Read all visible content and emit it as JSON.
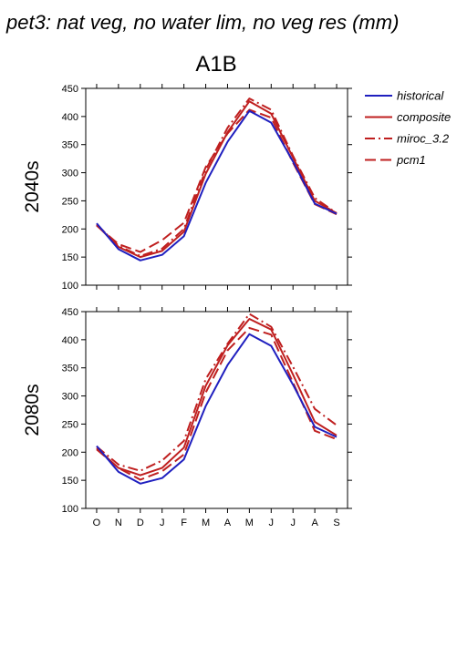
{
  "figure": {
    "title": "pet3: nat veg, no water lim, no veg res (mm)",
    "scenario": "A1B"
  },
  "chart_data": {
    "type": "line",
    "categories": [
      "O",
      "N",
      "D",
      "J",
      "F",
      "M",
      "A",
      "M",
      "J",
      "J",
      "A",
      "S"
    ],
    "ylim": [
      100,
      450
    ],
    "yticks": [
      100,
      150,
      200,
      250,
      300,
      350,
      400,
      450
    ],
    "legend": {
      "placement": "top-right",
      "entries": [
        "historical",
        "composite",
        "miroc_3.2",
        "pcm1"
      ]
    },
    "colors": {
      "historical": "#1f1fbf",
      "scenarios": "#bf1f1f"
    },
    "panels": [
      {
        "row_label": "2040s",
        "series": [
          {
            "name": "historical",
            "values": [
              210,
              164,
              144,
              154,
              187,
              282,
              355,
              410,
              389,
              320,
              245,
              227
            ]
          },
          {
            "name": "composite",
            "values": [
              207,
              168,
              150,
              161,
              195,
              298,
              372,
              427,
              405,
              327,
              250,
              228
            ]
          },
          {
            "name": "miroc_3.2",
            "values": [
              208,
              170,
              152,
              165,
              200,
              305,
              380,
              432,
              412,
              330,
              255,
              228
            ]
          },
          {
            "name": "pcm1",
            "values": [
              206,
              173,
              159,
              180,
              211,
              310,
              370,
              412,
              398,
              318,
              244,
              226
            ]
          }
        ]
      },
      {
        "row_label": "2080s",
        "series": [
          {
            "name": "historical",
            "values": [
              211,
              165,
              144,
              154,
              187,
              282,
              355,
              410,
              389,
              320,
              245,
              227
            ]
          },
          {
            "name": "composite",
            "values": [
              207,
              172,
              159,
              172,
              208,
              318,
              390,
              437,
              418,
              338,
              254,
              230
            ]
          },
          {
            "name": "miroc_3.2",
            "values": [
              210,
              178,
              167,
              185,
              220,
              330,
              393,
              446,
              423,
              352,
              277,
              248
            ]
          },
          {
            "name": "pcm1",
            "values": [
              205,
              172,
              151,
              166,
              196,
              306,
              381,
              421,
              409,
              324,
              238,
              223
            ]
          }
        ]
      }
    ]
  }
}
